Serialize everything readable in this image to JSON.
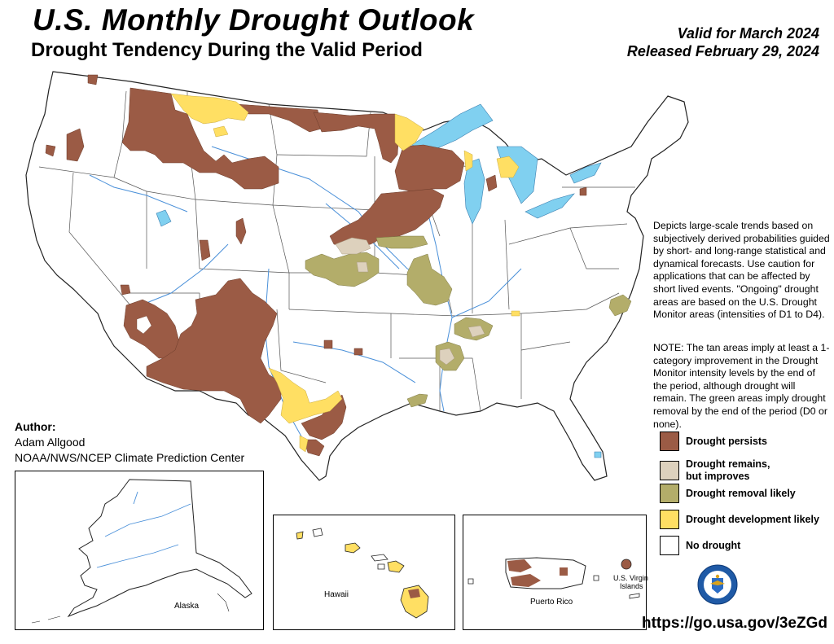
{
  "header": {
    "title": "U.S. Monthly Drought Outlook",
    "subtitle": "Drought Tendency During the Valid Period",
    "valid_line": "Valid for March 2024",
    "released_line": "Released February 29, 2024"
  },
  "description": "Depicts large-scale trends based on subjectively derived probabilities guided by short- and long-range statistical and dynamical forecasts. Use caution for applications that can be affected by short lived events. \"Ongoing\" drought areas are based on the U.S. Drought Monitor areas (intensities of D1 to D4).",
  "note": "NOTE: The tan areas imply at least a 1-category improvement in the Drought Monitor intensity levels by the end of the period, although drought will remain. The green areas imply drought removal by the end of the period (D0 or none).",
  "legend": [
    {
      "label_line1": "Drought persists",
      "label_line2": "",
      "color": "#9b5b45"
    },
    {
      "label_line1": "Drought remains,",
      "label_line2": "but improves",
      "color": "#ddd1bd"
    },
    {
      "label_line1": "Drought removal likely",
      "label_line2": "",
      "color": "#b3ad6a"
    },
    {
      "label_line1": "Drought development likely",
      "label_line2": "",
      "color": "#ffdf63"
    },
    {
      "label_line1": "No drought",
      "label_line2": "",
      "color": "#ffffff"
    }
  ],
  "author": {
    "heading": "Author:",
    "name": "Adam Allgood",
    "org": "NOAA/NWS/NCEP Climate Prediction Center"
  },
  "insets": {
    "alaska": "Alaska",
    "hawaii": "Hawaii",
    "puerto_rico": "Puerto Rico",
    "virgin_islands_1": "U.S. Virgin",
    "virgin_islands_2": "Islands"
  },
  "url": "https://go.usa.gov/3eZGd",
  "colors": {
    "persists": "#9b5b45",
    "improves": "#ddd1bd",
    "removal": "#b3ad6a",
    "development": "#ffdf63",
    "water": "#80d0f0",
    "rivers": "#4a90d9",
    "borders": "#444444"
  }
}
